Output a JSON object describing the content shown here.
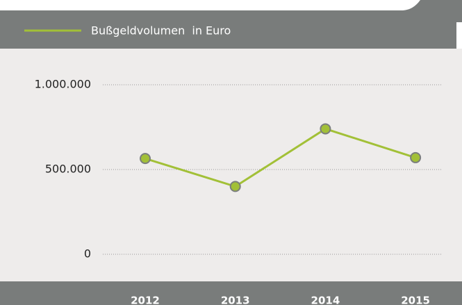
{
  "chart_data": {
    "type": "line",
    "categories": [
      "2012",
      "2013",
      "2014",
      "2015"
    ],
    "series": [
      {
        "name": "Bußgeldvolumen  in Euro",
        "color": "#a2c037",
        "values": [
          565000,
          400000,
          740000,
          570000
        ]
      }
    ],
    "ylim": [
      0,
      1000000
    ],
    "yticks": [
      0,
      {
        "value": 500000,
        "label": "500.000"
      },
      {
        "value": 1000000,
        "label": "1.000.000"
      }
    ],
    "grid": true
  }
}
